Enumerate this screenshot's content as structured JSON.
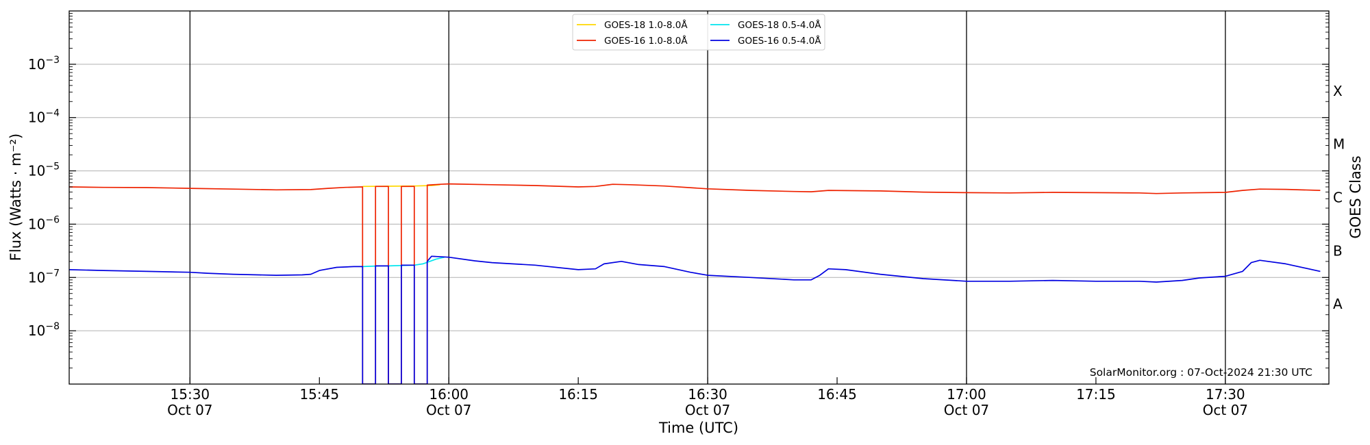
{
  "chart_data": {
    "type": "line",
    "xlabel": "Time (UTC)",
    "ylabel": "Flux (Watts · m⁻²)",
    "right_axis_label": "GOES Class",
    "y_scale": "log",
    "ylim": [
      1e-09,
      0.01
    ],
    "xlim": [
      "2024-10-07 15:16",
      "2024-10-07 17:42"
    ],
    "grid": "horizontal at 10^-8..10^-3; vertical lines at labeled times",
    "legend_position": "top-center",
    "annotation": "SolarMonitor.org : 07-Oct-2024 21:30 UTC",
    "x_ticks": [
      {
        "time": "15:30",
        "line1": "15:30",
        "line2": "Oct 07"
      },
      {
        "time": "15:45",
        "line1": "15:45",
        "line2": ""
      },
      {
        "time": "16:00",
        "line1": "16:00",
        "line2": "Oct 07"
      },
      {
        "time": "16:15",
        "line1": "16:15",
        "line2": ""
      },
      {
        "time": "16:30",
        "line1": "16:30",
        "line2": "Oct 07"
      },
      {
        "time": "16:45",
        "line1": "16:45",
        "line2": ""
      },
      {
        "time": "17:00",
        "line1": "17:00",
        "line2": "Oct 07"
      },
      {
        "time": "17:15",
        "line1": "17:15",
        "line2": ""
      },
      {
        "time": "17:30",
        "line1": "17:30",
        "line2": "Oct 07"
      }
    ],
    "y_ticks": [
      {
        "exp": -8,
        "base": "10",
        "sup": "−8"
      },
      {
        "exp": -7,
        "base": "10",
        "sup": "−7"
      },
      {
        "exp": -6,
        "base": "10",
        "sup": "−6"
      },
      {
        "exp": -5,
        "base": "10",
        "sup": "−5"
      },
      {
        "exp": -4,
        "base": "10",
        "sup": "−4"
      },
      {
        "exp": -3,
        "base": "10",
        "sup": "−3"
      }
    ],
    "goes_classes": [
      {
        "label": "A",
        "exp": -7.5
      },
      {
        "label": "B",
        "exp": -6.5
      },
      {
        "label": "C",
        "exp": -5.5
      },
      {
        "label": "M",
        "exp": -4.5
      },
      {
        "label": "X",
        "exp": -3.5
      }
    ],
    "series": [
      {
        "name": "GOES-18 1.0-8.0Å",
        "color": "#ffd700",
        "points": [
          [
            "15:50",
            5.1e-06
          ],
          [
            "15:53",
            5.15e-06
          ],
          [
            "15:56",
            5.2e-06
          ],
          [
            "15:58",
            5.3e-06
          ],
          [
            "15:59",
            5.5e-06
          ]
        ]
      },
      {
        "name": "GOES-18 0.5-4.0Å",
        "color": "#00e5ee",
        "points": [
          [
            "15:50",
            1.6e-07
          ],
          [
            "15:52",
            1.65e-07
          ],
          [
            "15:53",
            1.65e-07
          ],
          [
            "15:56",
            1.7e-07
          ],
          [
            "15:57",
            1.8e-07
          ],
          [
            "15:58.5",
            2.2e-07
          ],
          [
            "15:59.5",
            2.4e-07
          ]
        ]
      },
      {
        "name": "GOES-16 1.0-8.0Å",
        "color": "#ee2200",
        "points": [
          [
            "15:16",
            5e-06
          ],
          [
            "15:20",
            4.9e-06
          ],
          [
            "15:25",
            4.85e-06
          ],
          [
            "15:30",
            4.7e-06
          ],
          [
            "15:35",
            4.55e-06
          ],
          [
            "15:40",
            4.4e-06
          ],
          [
            "15:44",
            4.45e-06
          ],
          [
            "15:46",
            4.7e-06
          ],
          [
            "15:48",
            4.9e-06
          ],
          [
            "15:50",
            5e-06
          ],
          [
            "15:50",
            1e-09
          ],
          [
            "15:51.5",
            1e-09
          ],
          [
            "15:51.5",
            5.1e-06
          ],
          [
            "15:53",
            5.1e-06
          ],
          [
            "15:53",
            1e-09
          ],
          [
            "15:54.5",
            1e-09
          ],
          [
            "15:54.5",
            5.1e-06
          ],
          [
            "15:56",
            5.1e-06
          ],
          [
            "15:56",
            1e-09
          ],
          [
            "15:57.5",
            1e-09
          ],
          [
            "15:57.5",
            5.4e-06
          ],
          [
            "15:59",
            5.6e-06
          ],
          [
            "16:00",
            5.7e-06
          ],
          [
            "16:05",
            5.5e-06
          ],
          [
            "16:10",
            5.3e-06
          ],
          [
            "16:15",
            5e-06
          ],
          [
            "16:17",
            5.1e-06
          ],
          [
            "16:19",
            5.6e-06
          ],
          [
            "16:21",
            5.5e-06
          ],
          [
            "16:25",
            5.2e-06
          ],
          [
            "16:30",
            4.6e-06
          ],
          [
            "16:35",
            4.3e-06
          ],
          [
            "16:40",
            4.1e-06
          ],
          [
            "16:42",
            4.05e-06
          ],
          [
            "16:44",
            4.3e-06
          ],
          [
            "16:50",
            4.2e-06
          ],
          [
            "16:55",
            4e-06
          ],
          [
            "17:00",
            3.9e-06
          ],
          [
            "17:05",
            3.85e-06
          ],
          [
            "17:10",
            3.95e-06
          ],
          [
            "17:15",
            3.9e-06
          ],
          [
            "17:20",
            3.85e-06
          ],
          [
            "17:22",
            3.75e-06
          ],
          [
            "17:25",
            3.85e-06
          ],
          [
            "17:30",
            3.95e-06
          ],
          [
            "17:32",
            4.3e-06
          ],
          [
            "17:34",
            4.55e-06
          ],
          [
            "17:37",
            4.5e-06
          ],
          [
            "17:41",
            4.3e-06
          ]
        ]
      },
      {
        "name": "GOES-16 0.5-4.0Å",
        "color": "#0000e0",
        "points": [
          [
            "15:16",
            1.4e-07
          ],
          [
            "15:20",
            1.35e-07
          ],
          [
            "15:25",
            1.3e-07
          ],
          [
            "15:30",
            1.25e-07
          ],
          [
            "15:32",
            1.2e-07
          ],
          [
            "15:35",
            1.15e-07
          ],
          [
            "15:40",
            1.1e-07
          ],
          [
            "15:43",
            1.12e-07
          ],
          [
            "15:44",
            1.15e-07
          ],
          [
            "15:45",
            1.35e-07
          ],
          [
            "15:47",
            1.55e-07
          ],
          [
            "15:49",
            1.6e-07
          ],
          [
            "15:50",
            1.6e-07
          ],
          [
            "15:50",
            1e-09
          ],
          [
            "15:51.5",
            1e-09
          ],
          [
            "15:51.5",
            1.65e-07
          ],
          [
            "15:53",
            1.65e-07
          ],
          [
            "15:53",
            1e-09
          ],
          [
            "15:54.5",
            1e-09
          ],
          [
            "15:54.5",
            1.7e-07
          ],
          [
            "15:56",
            1.7e-07
          ],
          [
            "15:56",
            1e-09
          ],
          [
            "15:57.5",
            1e-09
          ],
          [
            "15:57.5",
            2e-07
          ],
          [
            "15:58",
            2.5e-07
          ],
          [
            "16:00",
            2.4e-07
          ],
          [
            "16:03",
            2.05e-07
          ],
          [
            "16:05",
            1.9e-07
          ],
          [
            "16:10",
            1.7e-07
          ],
          [
            "16:15",
            1.4e-07
          ],
          [
            "16:17",
            1.45e-07
          ],
          [
            "16:18",
            1.8e-07
          ],
          [
            "16:20",
            2e-07
          ],
          [
            "16:22",
            1.75e-07
          ],
          [
            "16:25",
            1.6e-07
          ],
          [
            "16:28",
            1.25e-07
          ],
          [
            "16:30",
            1.1e-07
          ],
          [
            "16:35",
            1e-07
          ],
          [
            "16:40",
            9e-08
          ],
          [
            "16:42",
            9e-08
          ],
          [
            "16:43",
            1.1e-07
          ],
          [
            "16:44",
            1.45e-07
          ],
          [
            "16:46",
            1.4e-07
          ],
          [
            "16:50",
            1.15e-07
          ],
          [
            "16:55",
            9.5e-08
          ],
          [
            "17:00",
            8.5e-08
          ],
          [
            "17:05",
            8.5e-08
          ],
          [
            "17:10",
            8.8e-08
          ],
          [
            "17:15",
            8.5e-08
          ],
          [
            "17:20",
            8.5e-08
          ],
          [
            "17:22",
            8.2e-08
          ],
          [
            "17:25",
            8.8e-08
          ],
          [
            "17:27",
            9.8e-08
          ],
          [
            "17:30",
            1.05e-07
          ],
          [
            "17:32",
            1.3e-07
          ],
          [
            "17:33",
            1.9e-07
          ],
          [
            "17:34",
            2.1e-07
          ],
          [
            "17:37",
            1.8e-07
          ],
          [
            "17:41",
            1.3e-07
          ]
        ]
      }
    ]
  }
}
